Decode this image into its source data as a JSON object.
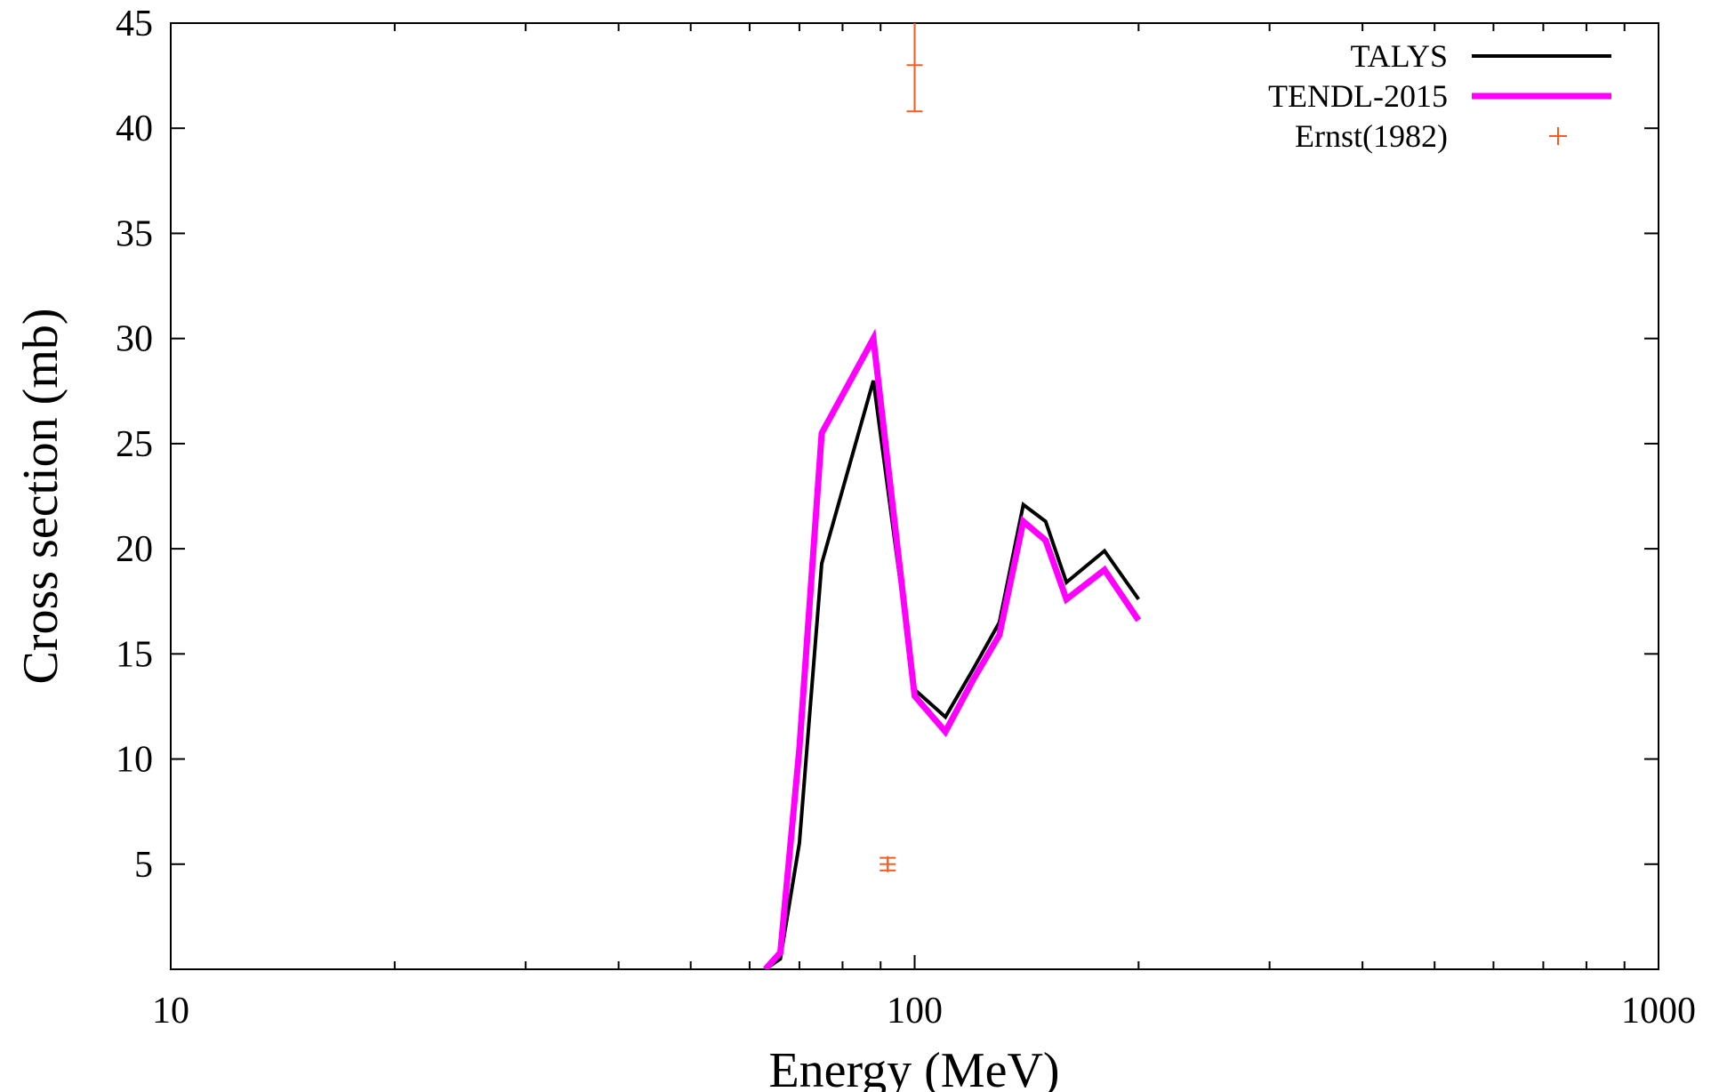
{
  "chart_data": {
    "type": "line",
    "title": "",
    "xlabel": "Energy (MeV)",
    "ylabel": "Cross section (mb)",
    "xscale": "log",
    "xlim": [
      10,
      1000
    ],
    "ylim": [
      0,
      45
    ],
    "xticks": [
      10,
      100,
      1000
    ],
    "xtick_labels": [
      "10",
      "100",
      "1000"
    ],
    "yticks": [
      5,
      10,
      15,
      20,
      25,
      30,
      35,
      40,
      45
    ],
    "ytick_labels": [
      "5",
      "10",
      "15",
      "20",
      "25",
      "30",
      "35",
      "40",
      "45"
    ],
    "grid": false,
    "legend_position": "top-right",
    "series": [
      {
        "name": "TALYS",
        "style": "line",
        "color": "#000000",
        "x": [
          63,
          66,
          70,
          75,
          88,
          100,
          110,
          120,
          130,
          140,
          150,
          160,
          180,
          200
        ],
        "y": [
          0,
          0.5,
          6,
          19.3,
          28,
          13.3,
          12,
          14.3,
          16.5,
          22.1,
          21.3,
          18.4,
          19.9,
          17.6
        ]
      },
      {
        "name": "TENDL-2015",
        "style": "line",
        "color": "#ff00ff",
        "x": [
          63,
          66,
          70,
          75,
          88,
          100,
          110,
          120,
          130,
          140,
          150,
          160,
          180,
          200
        ],
        "y": [
          0,
          0.8,
          10.5,
          25.5,
          30,
          13,
          11.3,
          13.8,
          15.9,
          21.3,
          20.4,
          17.6,
          19,
          16.6
        ]
      },
      {
        "name": "Ernst(1982)",
        "style": "points",
        "color": "#ff5a1e",
        "x": [
          92,
          100
        ],
        "y": [
          5,
          43
        ],
        "yerr": [
          0.3,
          2.2
        ]
      }
    ]
  }
}
